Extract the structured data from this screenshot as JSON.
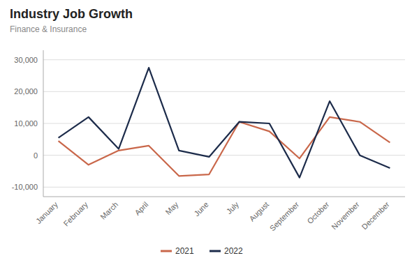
{
  "chart_data": {
    "type": "line",
    "title": "Industry Job Growth",
    "subtitle": "Finance & Insurance",
    "categories": [
      "January",
      "February",
      "March",
      "April",
      "May",
      "June",
      "July",
      "August",
      "September",
      "October",
      "November",
      "December"
    ],
    "series": [
      {
        "name": "2021",
        "color": "#c9674a",
        "values": [
          4500,
          -3000,
          1500,
          3000,
          -6500,
          -6000,
          10500,
          7500,
          -1000,
          12000,
          10500,
          4000
        ]
      },
      {
        "name": "2022",
        "color": "#1c2b4a",
        "values": [
          5500,
          12000,
          2000,
          27500,
          1500,
          -500,
          10500,
          10000,
          -7000,
          17000,
          0,
          -4000
        ]
      }
    ],
    "ylim": [
      -13000,
      33000
    ],
    "yticks": [
      {
        "value": -10000,
        "label": "-10,000"
      },
      0,
      {
        "value": 10000,
        "label": "10,000"
      },
      {
        "value": 20000,
        "label": "20,000"
      },
      {
        "value": 30000,
        "label": "30,000"
      }
    ],
    "grid": true,
    "legend": "bottom"
  }
}
